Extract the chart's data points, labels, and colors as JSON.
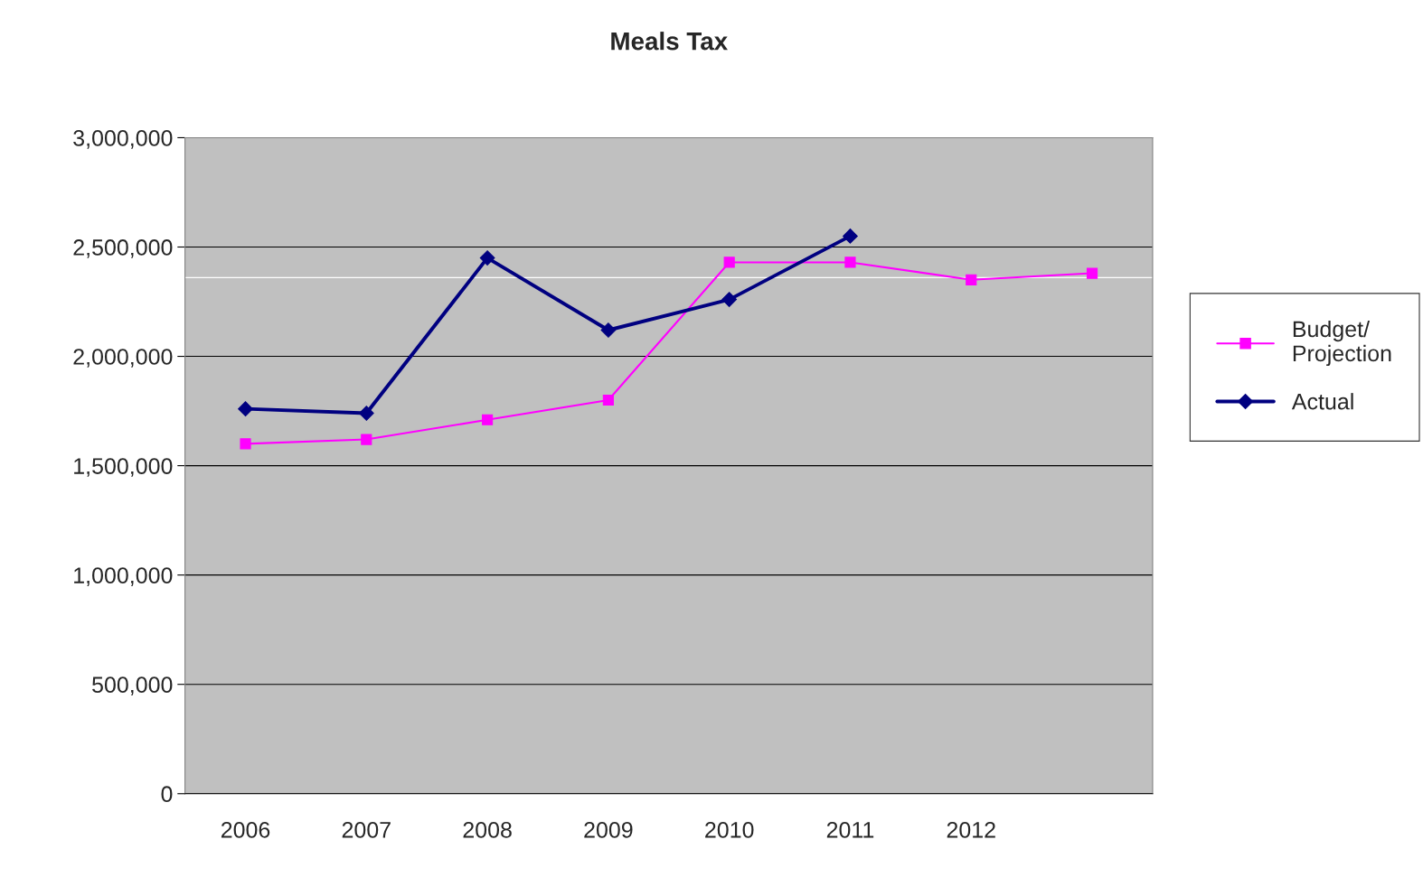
{
  "chart_data": {
    "type": "line",
    "title": "Meals Tax",
    "categories": [
      "2006",
      "2007",
      "2008",
      "2009",
      "2010",
      "2011",
      "2012",
      null
    ],
    "series": [
      {
        "name": "Budget/\nProjection",
        "color": "#ff00ff",
        "marker": "square",
        "values": [
          1600000,
          1620000,
          1710000,
          1800000,
          2430000,
          2430000,
          2350000,
          2380000
        ]
      },
      {
        "name": "Actual",
        "color": "#000080",
        "marker": "diamond",
        "values": [
          1760000,
          1740000,
          2450000,
          2120000,
          2260000,
          2550000,
          null,
          null
        ]
      }
    ],
    "ylim": [
      0,
      3000000
    ],
    "yticks": [
      {
        "value": 0,
        "label": "0"
      },
      {
        "value": 500000,
        "label": "500,000"
      },
      {
        "value": 1000000,
        "label": "1,000,000"
      },
      {
        "value": 1500000,
        "label": "1,500,000"
      },
      {
        "value": 2000000,
        "label": "2,000,000"
      },
      {
        "value": 2500000,
        "label": "2,500,000"
      },
      {
        "value": 3000000,
        "label": "3,000,000"
      }
    ],
    "ref_lines": [
      {
        "axis": "y",
        "value": 2360000,
        "color": "#ffffff"
      }
    ],
    "grid": "y",
    "legend": "right"
  }
}
